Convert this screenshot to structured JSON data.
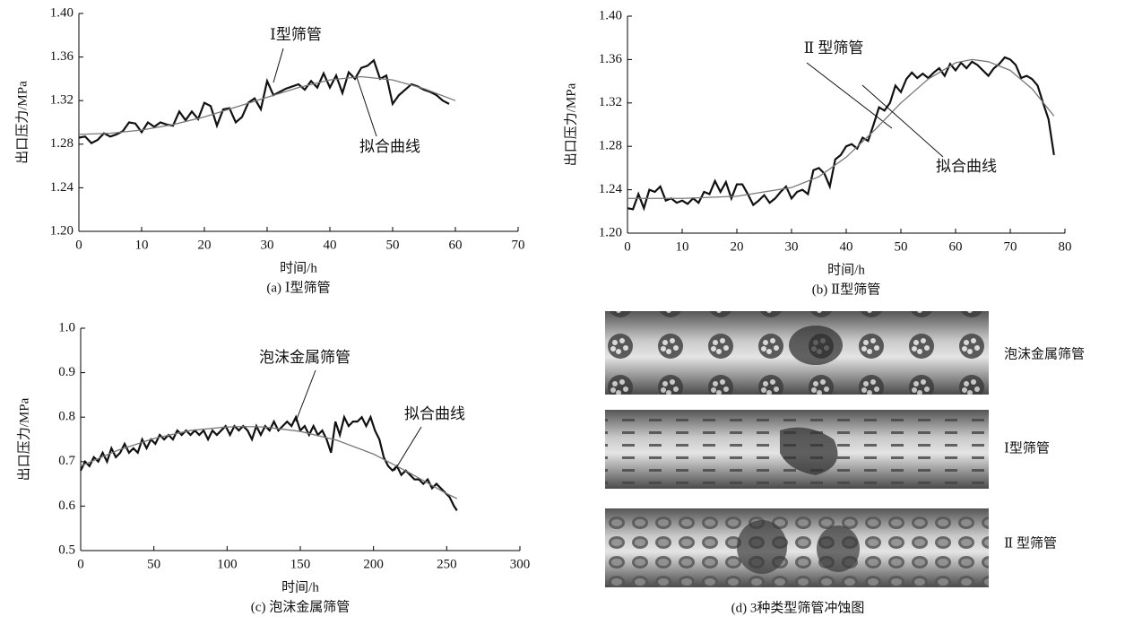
{
  "chart_data": [
    {
      "type": "line",
      "caption": "(a) Ⅰ型筛管",
      "x_label": "时间/h",
      "y_label": "出口压力/MPa",
      "xlim": [
        0,
        70
      ],
      "xticks": [
        0,
        10,
        20,
        30,
        40,
        50,
        60,
        70
      ],
      "ylim": [
        1.2,
        1.4
      ],
      "yticks": [
        {
          "value": 1.2,
          "label": "1.20"
        },
        1.24,
        1.28,
        1.32,
        1.36,
        {
          "value": 1.4,
          "label": "1.40"
        }
      ],
      "series": [
        {
          "name": "Ⅰ型筛管",
          "color": "#111111",
          "x": [
            0,
            1,
            2,
            3,
            4,
            5,
            6,
            7,
            8,
            9,
            10,
            11,
            12,
            13,
            14,
            15,
            16,
            17,
            18,
            19,
            20,
            21,
            22,
            23,
            24,
            25,
            26,
            27,
            28,
            29,
            30,
            31,
            32,
            33,
            34,
            35,
            36,
            37,
            38,
            39,
            40,
            41,
            42,
            43,
            44,
            45,
            46,
            47,
            48,
            49,
            50,
            51,
            52,
            53,
            54,
            55,
            56,
            57,
            58,
            59
          ],
          "values": [
            1.286,
            1.287,
            1.281,
            1.284,
            1.29,
            1.287,
            1.289,
            1.292,
            1.3,
            1.299,
            1.291,
            1.3,
            1.296,
            1.3,
            1.298,
            1.297,
            1.31,
            1.302,
            1.31,
            1.303,
            1.318,
            1.315,
            1.297,
            1.312,
            1.313,
            1.3,
            1.305,
            1.318,
            1.322,
            1.312,
            1.338,
            1.325,
            1.328,
            1.331,
            1.333,
            1.335,
            1.33,
            1.338,
            1.332,
            1.345,
            1.332,
            1.343,
            1.327,
            1.346,
            1.34,
            1.35,
            1.352,
            1.357,
            1.34,
            1.343,
            1.317,
            1.325,
            1.33,
            1.335,
            1.333,
            1.33,
            1.328,
            1.325,
            1.32,
            1.317
          ]
        },
        {
          "name": "拟合曲线",
          "color": "#777777",
          "x": [
            0,
            5,
            10,
            15,
            20,
            25,
            30,
            35,
            40,
            45,
            50,
            55,
            60
          ],
          "values": [
            1.289,
            1.29,
            1.293,
            1.298,
            1.305,
            1.314,
            1.323,
            1.332,
            1.339,
            1.342,
            1.339,
            1.331,
            1.32
          ]
        }
      ]
    },
    {
      "type": "line",
      "caption": "(b) Ⅱ型筛管",
      "x_label": "时间/h",
      "y_label": "出口压力/MPa",
      "xlim": [
        0,
        80
      ],
      "xticks": [
        0,
        10,
        20,
        30,
        40,
        50,
        60,
        70,
        80
      ],
      "ylim": [
        1.2,
        1.4
      ],
      "yticks": [
        {
          "value": 1.2,
          "label": "1.20"
        },
        1.24,
        1.28,
        1.32,
        1.36,
        {
          "value": 1.4,
          "label": "1.40"
        }
      ],
      "series": [
        {
          "name": "Ⅱ 型筛管",
          "color": "#111111",
          "x": [
            0,
            1,
            2,
            3,
            4,
            5,
            6,
            7,
            8,
            9,
            10,
            11,
            12,
            13,
            14,
            15,
            16,
            17,
            18,
            19,
            20,
            21,
            22,
            23,
            24,
            25,
            26,
            27,
            28,
            29,
            30,
            31,
            32,
            33,
            34,
            35,
            36,
            37,
            38,
            39,
            40,
            41,
            42,
            43,
            44,
            45,
            46,
            47,
            48,
            49,
            50,
            51,
            52,
            53,
            54,
            55,
            56,
            57,
            58,
            59,
            60,
            61,
            62,
            63,
            64,
            65,
            66,
            67,
            68,
            69,
            70,
            71,
            72,
            73,
            74,
            75,
            76,
            77,
            78
          ],
          "values": [
            1.223,
            1.222,
            1.236,
            1.223,
            1.24,
            1.238,
            1.243,
            1.23,
            1.232,
            1.228,
            1.23,
            1.227,
            1.232,
            1.228,
            1.238,
            1.236,
            1.248,
            1.238,
            1.247,
            1.232,
            1.245,
            1.245,
            1.236,
            1.226,
            1.23,
            1.235,
            1.228,
            1.232,
            1.238,
            1.243,
            1.232,
            1.238,
            1.24,
            1.236,
            1.258,
            1.26,
            1.255,
            1.243,
            1.268,
            1.272,
            1.28,
            1.282,
            1.278,
            1.288,
            1.285,
            1.3,
            1.316,
            1.313,
            1.32,
            1.336,
            1.33,
            1.342,
            1.348,
            1.343,
            1.347,
            1.343,
            1.348,
            1.352,
            1.345,
            1.356,
            1.35,
            1.357,
            1.352,
            1.358,
            1.355,
            1.35,
            1.345,
            1.352,
            1.356,
            1.362,
            1.36,
            1.355,
            1.343,
            1.345,
            1.342,
            1.336,
            1.32,
            1.305,
            1.272
          ]
        },
        {
          "name": "拟合曲线",
          "color": "#777777",
          "x": [
            0,
            10,
            20,
            30,
            35,
            40,
            45,
            50,
            55,
            60,
            63,
            66,
            70,
            74,
            78
          ],
          "values": [
            1.232,
            1.232,
            1.234,
            1.242,
            1.252,
            1.27,
            1.294,
            1.32,
            1.342,
            1.357,
            1.36,
            1.358,
            1.35,
            1.333,
            1.308
          ]
        }
      ]
    },
    {
      "type": "line",
      "caption": "(c) 泡沫金属筛管",
      "x_label": "时间/h",
      "y_label": "出口压力/MPa",
      "xlim": [
        0,
        300
      ],
      "xticks": [
        0,
        50,
        100,
        150,
        200,
        250,
        300
      ],
      "ylim": [
        0.5,
        1.0
      ],
      "yticks": [
        0.5,
        0.6,
        0.7,
        0.8,
        0.9,
        {
          "value": 1.0,
          "label": "1.0"
        }
      ],
      "series": [
        {
          "name": "泡沫金属筛管",
          "color": "#111111",
          "x": [
            0,
            3,
            6,
            9,
            12,
            15,
            18,
            21,
            24,
            27,
            30,
            33,
            36,
            39,
            42,
            45,
            48,
            51,
            54,
            57,
            60,
            63,
            66,
            69,
            72,
            75,
            78,
            81,
            84,
            87,
            90,
            93,
            96,
            99,
            102,
            105,
            108,
            111,
            114,
            117,
            120,
            123,
            126,
            129,
            132,
            135,
            138,
            141,
            144,
            147,
            150,
            153,
            156,
            159,
            162,
            165,
            168,
            171,
            174,
            177,
            180,
            183,
            186,
            189,
            192,
            195,
            198,
            201,
            204,
            207,
            210,
            213,
            216,
            219,
            222,
            225,
            228,
            231,
            234,
            237,
            240,
            243,
            246,
            249,
            252,
            255,
            257
          ],
          "values": [
            0.68,
            0.7,
            0.69,
            0.71,
            0.7,
            0.72,
            0.7,
            0.73,
            0.71,
            0.72,
            0.74,
            0.72,
            0.73,
            0.72,
            0.75,
            0.73,
            0.75,
            0.74,
            0.76,
            0.75,
            0.76,
            0.75,
            0.77,
            0.76,
            0.77,
            0.76,
            0.77,
            0.76,
            0.77,
            0.75,
            0.77,
            0.76,
            0.77,
            0.78,
            0.76,
            0.78,
            0.77,
            0.78,
            0.77,
            0.75,
            0.78,
            0.76,
            0.78,
            0.77,
            0.79,
            0.77,
            0.78,
            0.79,
            0.78,
            0.8,
            0.77,
            0.78,
            0.76,
            0.78,
            0.76,
            0.77,
            0.75,
            0.72,
            0.79,
            0.76,
            0.8,
            0.78,
            0.79,
            0.79,
            0.8,
            0.78,
            0.8,
            0.77,
            0.75,
            0.71,
            0.69,
            0.68,
            0.69,
            0.67,
            0.68,
            0.67,
            0.66,
            0.66,
            0.65,
            0.66,
            0.64,
            0.65,
            0.64,
            0.63,
            0.62,
            0.6,
            0.59
          ]
        },
        {
          "name": "拟合曲线",
          "color": "#777777",
          "x": [
            0,
            25,
            50,
            75,
            100,
            110,
            125,
            150,
            175,
            200,
            225,
            250,
            257
          ],
          "values": [
            0.69,
            0.725,
            0.752,
            0.77,
            0.778,
            0.779,
            0.778,
            0.768,
            0.748,
            0.717,
            0.674,
            0.628,
            0.617
          ]
        }
      ]
    }
  ],
  "photo_panel": {
    "caption": "(d) 3种类型筛管冲蚀图",
    "labels": [
      "泡沫金属筛管",
      "Ⅰ型筛管",
      "Ⅱ 型筛管"
    ]
  }
}
